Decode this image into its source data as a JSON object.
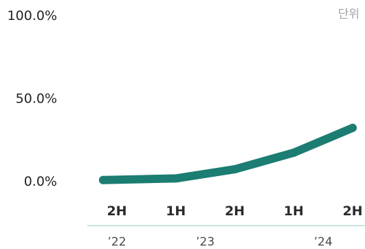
{
  "chart_data": {
    "type": "line",
    "unit_label": "단위",
    "categories": [
      "2H",
      "1H",
      "2H",
      "1H",
      "2H"
    ],
    "year_labels": [
      {
        "text": "’22",
        "category_index": 0
      },
      {
        "text": "’23",
        "category_index": 1.5
      },
      {
        "text": "’24",
        "category_index": 3.5
      }
    ],
    "series": [
      {
        "values": [
          0.5,
          1.5,
          7.0,
          17.0,
          32.0
        ]
      }
    ],
    "ylim": [
      0,
      100
    ],
    "yticks": [
      "100.0%",
      "50.0%",
      "0.0%"
    ],
    "ytick_values": [
      100,
      50,
      0
    ],
    "grid": false,
    "colors": {
      "line": "#1c7d72",
      "axis": "#b8dcd6"
    }
  }
}
